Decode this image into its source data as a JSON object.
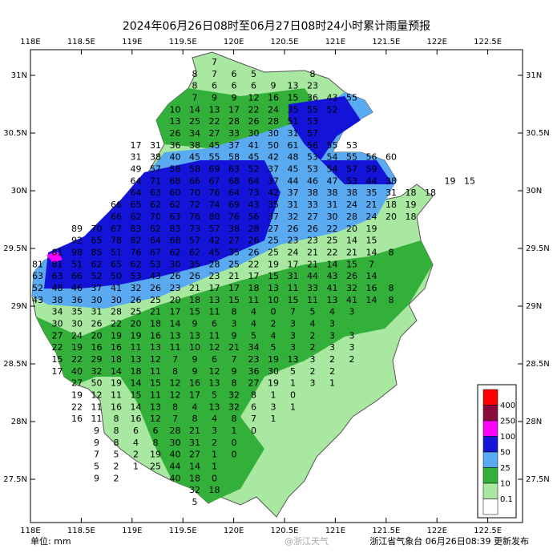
{
  "title": "2024年06月26日08时至06月27日08时24小时累计雨量预报",
  "unit_label": "单位: mm",
  "footer": "浙江省气象台 06月26日08:39 更新发布",
  "watermark": "@浙江天气",
  "x_labels": [
    "118E",
    "118.5E",
    "119E",
    "119.5E",
    "120E",
    "120.5E",
    "121E",
    "121.5E",
    "122E",
    "122.5E"
  ],
  "y_labels": [
    "31N",
    "30.5N",
    "30N",
    "29.5N",
    "29N",
    "28.5N",
    "28N",
    "27.5N"
  ],
  "legend": {
    "labels": [
      400,
      250,
      100,
      50,
      25,
      10,
      0.1
    ],
    "colors": [
      "#ff0000",
      "#8b0a3a",
      "#ff00ff",
      "#1414d8",
      "#5aaaf2",
      "#33b03a",
      "#a8e8a0",
      "#ffffff"
    ]
  },
  "grid_values": [
    [
      null,
      null,
      null,
      null,
      null,
      null,
      null,
      null,
      null,
      7
    ],
    [
      null,
      null,
      null,
      null,
      null,
      null,
      null,
      null,
      8,
      7,
      6,
      5,
      null,
      null,
      8
    ],
    [
      null,
      null,
      null,
      null,
      null,
      null,
      null,
      null,
      8,
      6,
      6,
      6,
      9,
      13,
      23
    ],
    [
      null,
      null,
      null,
      null,
      null,
      null,
      null,
      null,
      7,
      9,
      9,
      12,
      16,
      15,
      36,
      43,
      55
    ],
    [
      null,
      null,
      null,
      null,
      null,
      null,
      null,
      10,
      14,
      13,
      17,
      22,
      24,
      35,
      55,
      52
    ],
    [
      null,
      null,
      null,
      null,
      null,
      null,
      null,
      13,
      25,
      22,
      28,
      26,
      28,
      51,
      53
    ],
    [
      null,
      null,
      null,
      null,
      null,
      null,
      null,
      26,
      34,
      27,
      33,
      30,
      30,
      31,
      57
    ],
    [
      null,
      null,
      null,
      null,
      null,
      17,
      31,
      36,
      38,
      45,
      37,
      41,
      50,
      61,
      56,
      55,
      53
    ],
    [
      null,
      null,
      null,
      null,
      null,
      31,
      38,
      40,
      45,
      55,
      58,
      45,
      42,
      48,
      53,
      54,
      55,
      56,
      60
    ],
    [
      null,
      null,
      null,
      null,
      null,
      49,
      57,
      58,
      58,
      69,
      63,
      52,
      37,
      45,
      53,
      54,
      57,
      59
    ],
    [
      null,
      null,
      null,
      null,
      null,
      64,
      71,
      68,
      66,
      67,
      68,
      64,
      37,
      44,
      46,
      47,
      53,
      44,
      38,
      null,
      null,
      19,
      15
    ],
    [
      null,
      null,
      null,
      null,
      null,
      64,
      63,
      60,
      70,
      76,
      64,
      73,
      42,
      37,
      38,
      38,
      38,
      35,
      31,
      18,
      18
    ],
    [
      null,
      null,
      null,
      null,
      66,
      65,
      62,
      62,
      72,
      74,
      69,
      43,
      35,
      31,
      33,
      31,
      24,
      21,
      18,
      19
    ],
    [
      null,
      null,
      null,
      null,
      66,
      62,
      70,
      63,
      76,
      80,
      76,
      56,
      37,
      32,
      27,
      30,
      28,
      24,
      20,
      18
    ],
    [
      null,
      null,
      89,
      70,
      67,
      83,
      62,
      83,
      73,
      57,
      38,
      28,
      27,
      26,
      26,
      22,
      20,
      19
    ],
    [
      null,
      null,
      92,
      65,
      78,
      82,
      64,
      68,
      57,
      42,
      27,
      26,
      25,
      23,
      23,
      25,
      14,
      15
    ],
    [
      null,
      81,
      98,
      85,
      51,
      76,
      67,
      62,
      62,
      45,
      35,
      26,
      25,
      24,
      21,
      22,
      21,
      14,
      8
    ],
    [
      81,
      81,
      51,
      62,
      65,
      62,
      53,
      30,
      35,
      28,
      25,
      22,
      19,
      17,
      21,
      14,
      15,
      7
    ],
    [
      63,
      63,
      66,
      52,
      50,
      53,
      43,
      26,
      26,
      23,
      21,
      17,
      15,
      31,
      44,
      43,
      26,
      14
    ],
    [
      52,
      48,
      46,
      37,
      41,
      32,
      26,
      23,
      21,
      17,
      17,
      18,
      13,
      11,
      33,
      41,
      32,
      16,
      8
    ],
    [
      43,
      38,
      36,
      30,
      30,
      26,
      25,
      20,
      18,
      13,
      15,
      11,
      10,
      15,
      11,
      13,
      41,
      14,
      8
    ],
    [
      null,
      34,
      35,
      31,
      28,
      25,
      21,
      17,
      15,
      11,
      8,
      4,
      0,
      7,
      5,
      4,
      3
    ],
    [
      null,
      30,
      30,
      26,
      22,
      20,
      18,
      14,
      9,
      6,
      3,
      4,
      2,
      3,
      4,
      3
    ],
    [
      null,
      27,
      24,
      20,
      19,
      19,
      16,
      13,
      13,
      11,
      9,
      5,
      4,
      3,
      2,
      3,
      3
    ],
    [
      null,
      22,
      19,
      16,
      16,
      11,
      13,
      11,
      10,
      12,
      21,
      34,
      5,
      3,
      2,
      3,
      3
    ],
    [
      null,
      15,
      22,
      29,
      18,
      13,
      12,
      7,
      9,
      6,
      7,
      23,
      19,
      13,
      3,
      2,
      2
    ],
    [
      null,
      17,
      40,
      32,
      14,
      18,
      11,
      8,
      9,
      12,
      9,
      36,
      30,
      5,
      2,
      2
    ],
    [
      null,
      null,
      27,
      50,
      19,
      14,
      15,
      12,
      16,
      13,
      8,
      27,
      19,
      1,
      3,
      1
    ],
    [
      null,
      null,
      19,
      12,
      11,
      15,
      11,
      12,
      17,
      5,
      32,
      8,
      1,
      0
    ],
    [
      null,
      null,
      22,
      11,
      16,
      14,
      13,
      8,
      4,
      13,
      32,
      6,
      3,
      1
    ],
    [
      null,
      null,
      16,
      11,
      8,
      16,
      12,
      7,
      8,
      4,
      8,
      7,
      1
    ],
    [
      null,
      null,
      null,
      9,
      8,
      6,
      6,
      28,
      21,
      3,
      1,
      0
    ],
    [
      null,
      null,
      null,
      9,
      8,
      4,
      8,
      30,
      31,
      2,
      0
    ],
    [
      null,
      null,
      null,
      7,
      5,
      2,
      19,
      40,
      27,
      1,
      0
    ],
    [
      null,
      null,
      null,
      5,
      2,
      1,
      25,
      44,
      14,
      1
    ],
    [
      null,
      null,
      null,
      9,
      2,
      null,
      null,
      40,
      18,
      0
    ],
    [
      null,
      null,
      null,
      null,
      null,
      null,
      null,
      null,
      32,
      18
    ],
    [
      null,
      null,
      null,
      null,
      null,
      null,
      null,
      null,
      5
    ]
  ]
}
